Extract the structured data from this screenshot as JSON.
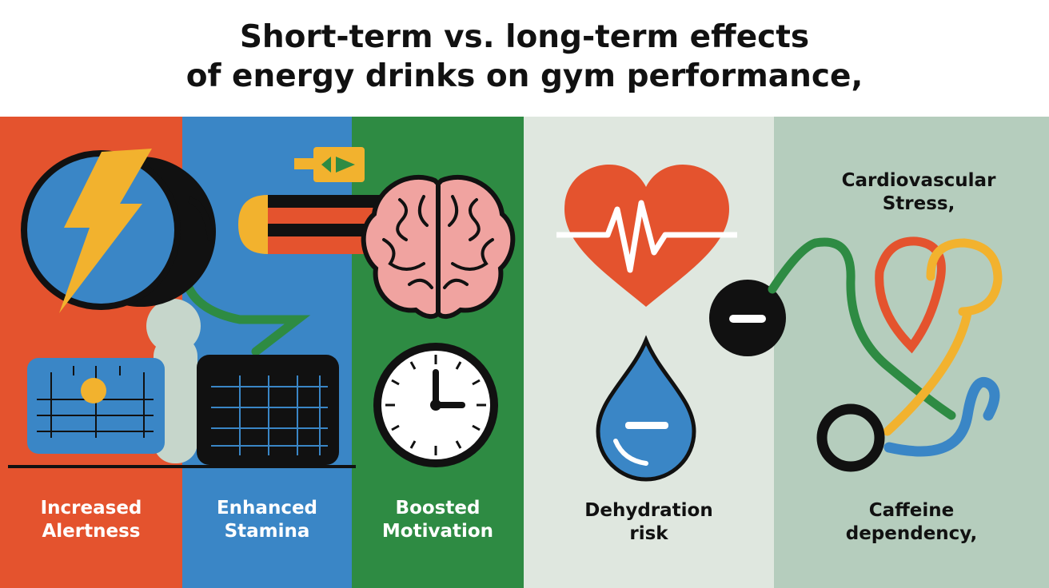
{
  "title": {
    "line1": "Short-term vs. long-term effects",
    "line2": "of energy drinks on gym performance,"
  },
  "short_term": [
    {
      "line1": "Increased",
      "line2": "Alertness"
    },
    {
      "line1": "Enhanced",
      "line2": "Stamina"
    },
    {
      "line1": "Boosted",
      "line2": "Motivation"
    }
  ],
  "long_term": {
    "dehydration": {
      "line1": "Dehydration",
      "line2": "risk"
    },
    "cardio": {
      "line1": "Cardiovascular",
      "line2": "Stress,"
    },
    "caffeine": {
      "line1": "Caffeine",
      "line2": "dependency,"
    }
  },
  "colors": {
    "red": "#e4532e",
    "blue": "#3a86c6",
    "green": "#2e8b43",
    "yellow": "#f2b22e",
    "pink": "#f0a3a0",
    "pale_green": "#dfe7df",
    "sage": "#b5cdbd"
  },
  "icons": [
    "lightning-bolt-icon",
    "brain-icon",
    "battery-icon",
    "calendar-grid-icon",
    "clock-icon",
    "heartbeat-icon",
    "water-drop-icon",
    "minus-icon",
    "stethoscope-icon"
  ]
}
